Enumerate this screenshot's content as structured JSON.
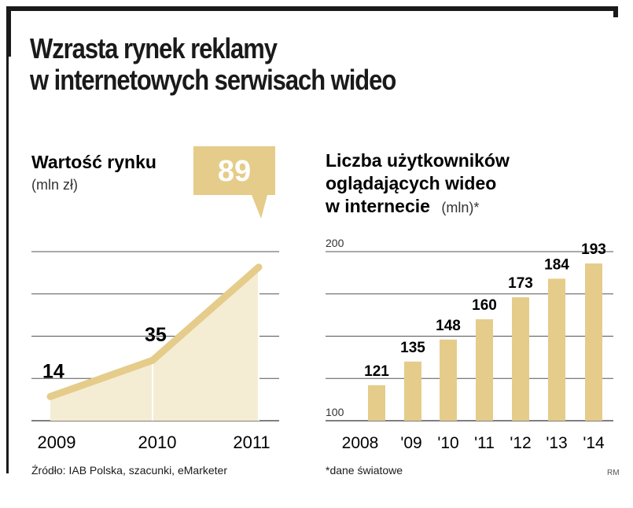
{
  "title": {
    "line1": "Wzrasta rynek reklamy",
    "line2": "w internetowych serwisach wideo"
  },
  "colors": {
    "accent": "#e5cc8a",
    "fill": "#f5ecd4",
    "text": "#1a1a1a",
    "grid": "#555555"
  },
  "chart_data": [
    {
      "type": "area",
      "title": "Wartość rynku",
      "unit": "(mln zł)",
      "categories": [
        "2009",
        "2010",
        "2011"
      ],
      "values": [
        14,
        35,
        89
      ],
      "highlight": "89",
      "grid": true,
      "gridlines": 4
    },
    {
      "type": "bar",
      "title_lines": [
        "Liczba użytkowników",
        "oglądających wideo",
        "w internecie"
      ],
      "unit": "(mln)*",
      "categories": [
        "2008",
        "'09",
        "'10",
        "'11",
        "'12",
        "'13",
        "'14"
      ],
      "values": [
        121,
        135,
        148,
        160,
        173,
        184,
        193
      ],
      "ylim": [
        100,
        200
      ],
      "yticks": [
        "100",
        "200"
      ],
      "grid": true,
      "note": "*dane światowe"
    }
  ],
  "footer": {
    "source": "Źródło: IAB Polska, szacunki, eMarketer",
    "credit": "RM"
  }
}
